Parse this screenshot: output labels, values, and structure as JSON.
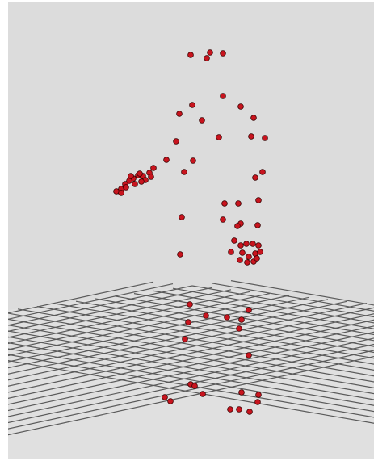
{
  "viewer": {
    "background_color": "#dcdcdc",
    "grid_color": "#5a5a5a",
    "floor_color": "#e0e0e0",
    "marker_color": "#c8141e",
    "marker_outline_color": "#3a0000"
  }
}
